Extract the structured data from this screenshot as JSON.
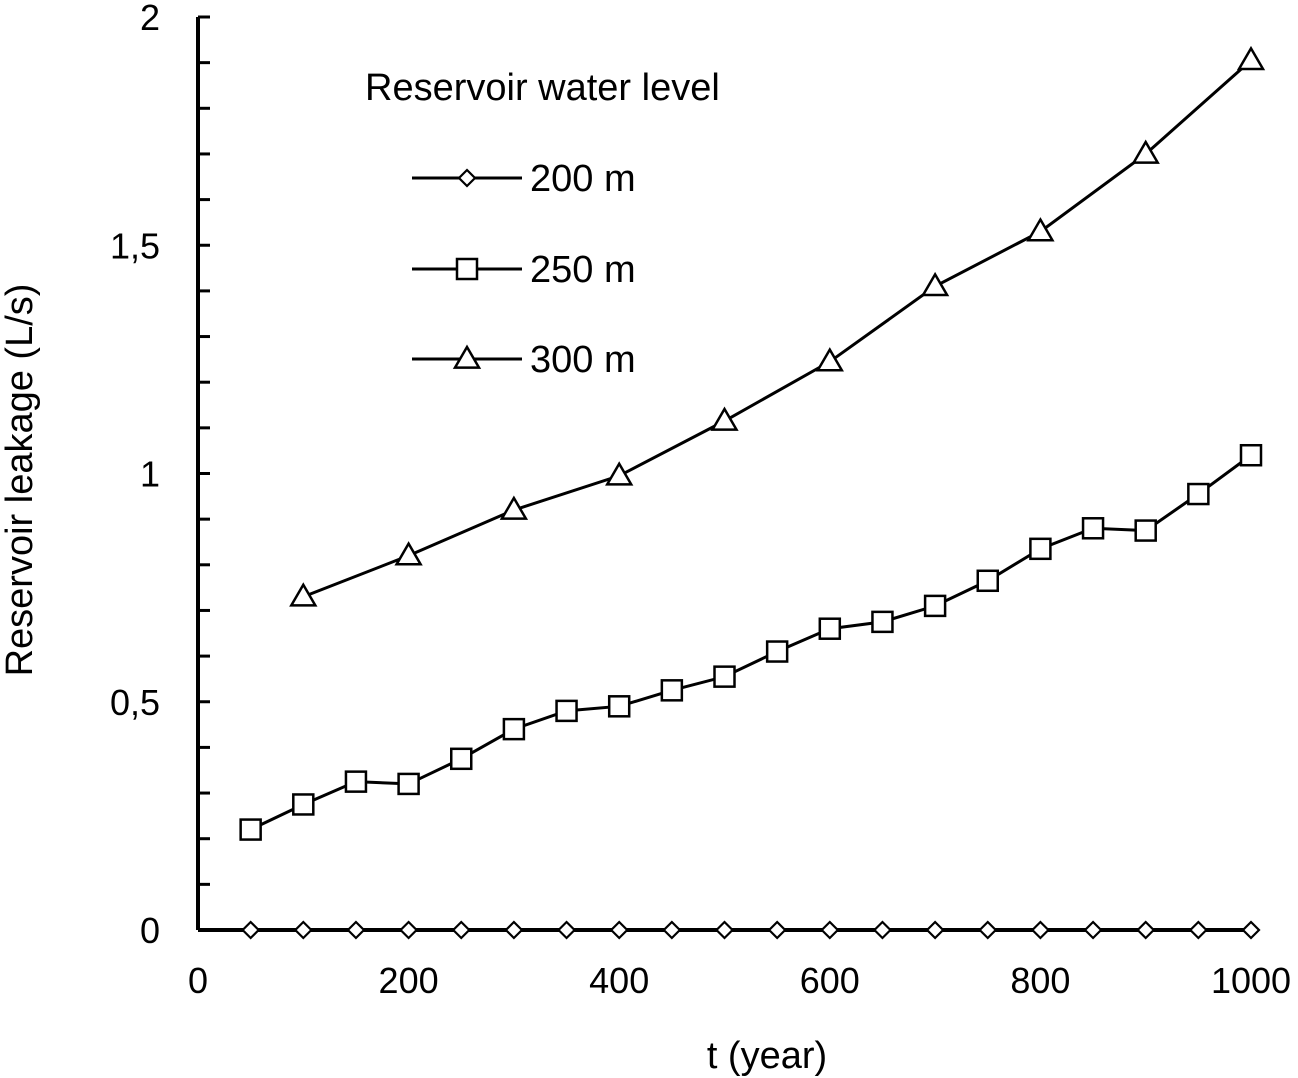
{
  "chart_data": {
    "type": "line",
    "xlabel": "t (year)",
    "ylabel": "Reservoir  leakage  (L/s)",
    "xlim": [
      0,
      1000
    ],
    "ylim": [
      0,
      2
    ],
    "x_ticks": [
      "0",
      "200",
      "400",
      "600",
      "800",
      "1000"
    ],
    "y_ticks": [
      "0",
      "0,5",
      "1",
      "1,5",
      "2"
    ],
    "grid": false,
    "legend": {
      "title": "Reservoir water level",
      "placement": "top-left"
    },
    "series": [
      {
        "name": "200 m",
        "marker": "diamond",
        "x": [
          50,
          100,
          150,
          200,
          250,
          300,
          350,
          400,
          450,
          500,
          550,
          600,
          650,
          700,
          750,
          800,
          850,
          900,
          950,
          1000
        ],
        "y": [
          0,
          0,
          0,
          0,
          0,
          0,
          0,
          0,
          0,
          0,
          0,
          0,
          0,
          0,
          0,
          0,
          0,
          0,
          0,
          0
        ]
      },
      {
        "name": "250 m",
        "marker": "square",
        "x": [
          50,
          100,
          150,
          200,
          250,
          300,
          350,
          400,
          450,
          500,
          550,
          600,
          650,
          700,
          750,
          800,
          850,
          900,
          950,
          1000
        ],
        "y": [
          0.22,
          0.275,
          0.325,
          0.32,
          0.375,
          0.44,
          0.48,
          0.49,
          0.525,
          0.555,
          0.61,
          0.66,
          0.675,
          0.71,
          0.765,
          0.835,
          0.88,
          0.875,
          0.955,
          1.04
        ]
      },
      {
        "name": "300 m",
        "marker": "triangle",
        "x": [
          100,
          200,
          300,
          400,
          500,
          600,
          700,
          800,
          900,
          1000
        ],
        "y": [
          0.73,
          0.82,
          0.92,
          0.995,
          1.115,
          1.245,
          1.41,
          1.53,
          1.7,
          1.905
        ]
      }
    ]
  }
}
